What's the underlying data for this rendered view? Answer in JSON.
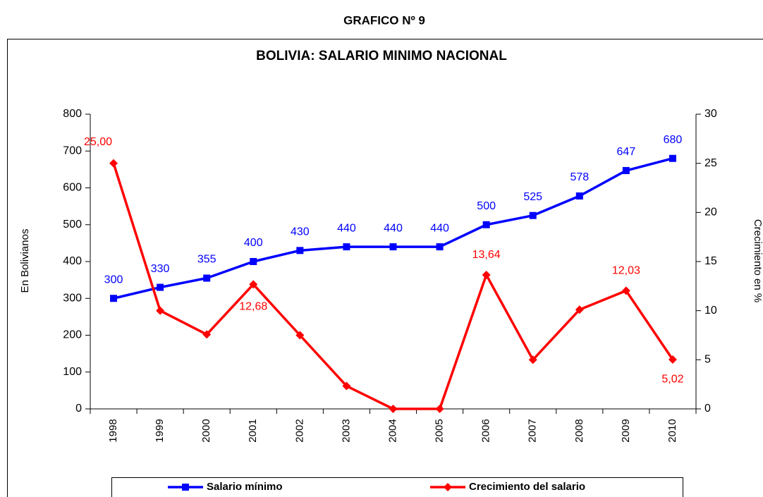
{
  "chart_data": {
    "type": "line",
    "supertitle": "GRAFICO Nº 9",
    "title": "BOLIVIA: SALARIO MINIMO NACIONAL",
    "y_label": "En Bolivianos",
    "y2_label": "Crecimiento en %",
    "categories": [
      "1998",
      "1999",
      "2000",
      "2001",
      "2002",
      "2003",
      "2004",
      "2005",
      "2006",
      "2007",
      "2008",
      "2009",
      "2010"
    ],
    "series": [
      {
        "name": "Salario mínimo",
        "color": "#0000ff",
        "marker": "square",
        "values": [
          300,
          330,
          355,
          400,
          430,
          440,
          440,
          440,
          500,
          525,
          578,
          647,
          680
        ]
      },
      {
        "name": "Crecimiento del salario",
        "color": "#ff0000",
        "marker": "diamond",
        "axis": "y2",
        "values": [
          25.0,
          10.0,
          7.58,
          12.68,
          7.5,
          2.33,
          0,
          0,
          13.64,
          5.0,
          10.1,
          12.03,
          5.02
        ],
        "value_labels": [
          "25,00",
          null,
          null,
          "12,68",
          null,
          null,
          null,
          null,
          "13,64",
          null,
          null,
          "12,03",
          "5,02"
        ]
      }
    ],
    "ylim": [
      0,
      800
    ],
    "yticks": [
      0,
      100,
      200,
      300,
      400,
      500,
      600,
      700,
      800
    ],
    "y2lim": [
      0,
      30
    ],
    "y2ticks": [
      0,
      5,
      10,
      15,
      20,
      25,
      30
    ],
    "legend": "bottom"
  }
}
